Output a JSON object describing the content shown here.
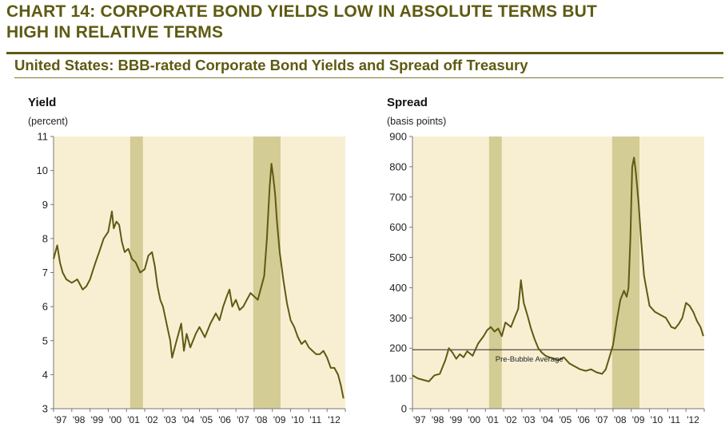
{
  "header": {
    "title_line1": "CHART 14: CORPORATE BOND YIELDS LOW IN ABSOLUTE TERMS BUT",
    "title_line2": "HIGH IN RELATIVE TERMS",
    "subtitle": "United States: BBB-rated Corporate Bond Yields and Spread off Treasury"
  },
  "colors": {
    "title": "#5e5a12",
    "line": "#5e5a12",
    "plot_bg": "#f8efd3",
    "recession_band": "#d4cc95"
  },
  "chart_data": [
    {
      "type": "line",
      "title": "Yield",
      "ylabel": "(percent)",
      "x_ticks": [
        "'97",
        "'98",
        "'99",
        "'00",
        "'01",
        "'02",
        "'03",
        "'04",
        "'05",
        "'06",
        "'07",
        "'08",
        "'09",
        "'10",
        "'11",
        "'12"
      ],
      "xlim": [
        1997.0,
        2013.0
      ],
      "ylim": [
        3,
        11
      ],
      "y_ticks": [
        3,
        4,
        5,
        6,
        7,
        8,
        9,
        10,
        11
      ],
      "shaded_periods": [
        [
          2001.2,
          2001.9
        ],
        [
          2007.95,
          2009.45
        ]
      ],
      "series": [
        {
          "x": [
            1997.0,
            1997.2,
            1997.35,
            1997.5,
            1997.7,
            1998.0,
            1998.3,
            1998.6,
            1998.8,
            1999.0,
            1999.3,
            1999.5,
            1999.75,
            2000.0,
            2000.2,
            2000.3,
            2000.45,
            2000.6,
            2000.75,
            2000.9,
            2001.1,
            2001.3,
            2001.5,
            2001.75,
            2002.0,
            2002.2,
            2002.4,
            2002.55,
            2002.7,
            2002.85,
            2003.0,
            2003.2,
            2003.4,
            2003.5,
            2003.7,
            2004.0,
            2004.15,
            2004.3,
            2004.5,
            2004.8,
            2005.0,
            2005.3,
            2005.6,
            2005.9,
            2006.1,
            2006.3,
            2006.5,
            2006.65,
            2006.8,
            2007.0,
            2007.2,
            2007.4,
            2007.6,
            2007.8,
            2008.0,
            2008.2,
            2008.4,
            2008.55,
            2008.7,
            2008.78,
            2008.85,
            2008.95,
            2009.05,
            2009.15,
            2009.25,
            2009.4,
            2009.6,
            2009.8,
            2010.0,
            2010.2,
            2010.4,
            2010.6,
            2010.8,
            2011.0,
            2011.2,
            2011.4,
            2011.6,
            2011.8,
            2012.0,
            2012.2,
            2012.4,
            2012.6,
            2012.75,
            2012.9
          ],
          "y": [
            7.4,
            7.8,
            7.3,
            7.0,
            6.8,
            6.7,
            6.8,
            6.5,
            6.6,
            6.8,
            7.3,
            7.6,
            8.0,
            8.2,
            8.8,
            8.3,
            8.5,
            8.4,
            7.9,
            7.6,
            7.7,
            7.4,
            7.3,
            7.0,
            7.1,
            7.5,
            7.6,
            7.2,
            6.6,
            6.2,
            6.0,
            5.5,
            5.0,
            4.5,
            4.9,
            5.5,
            4.7,
            5.2,
            4.8,
            5.2,
            5.4,
            5.1,
            5.5,
            5.8,
            5.6,
            6.0,
            6.3,
            6.5,
            6.0,
            6.2,
            5.9,
            6.0,
            6.2,
            6.4,
            6.3,
            6.2,
            6.6,
            6.9,
            8.0,
            8.8,
            9.5,
            10.2,
            9.8,
            9.3,
            8.5,
            7.6,
            6.8,
            6.1,
            5.6,
            5.4,
            5.1,
            4.9,
            5.0,
            4.8,
            4.7,
            4.6,
            4.6,
            4.7,
            4.5,
            4.2,
            4.2,
            4.0,
            3.7,
            3.3
          ]
        }
      ]
    },
    {
      "type": "line",
      "title": "Spread",
      "ylabel": "(basis points)",
      "x_ticks": [
        "'97",
        "'98",
        "'99",
        "'00",
        "'01",
        "'02",
        "'03",
        "'04",
        "'05",
        "'06",
        "'07",
        "'08",
        "'09",
        "'10",
        "'11",
        "'12"
      ],
      "xlim": [
        1997.0,
        2013.0
      ],
      "ylim": [
        0,
        900
      ],
      "y_ticks": [
        0,
        100,
        200,
        300,
        400,
        500,
        600,
        700,
        800,
        900
      ],
      "shaded_periods": [
        [
          2001.2,
          2001.9
        ],
        [
          2007.95,
          2009.45
        ]
      ],
      "reference_line": {
        "value": 195,
        "label": "Pre-Bubble Average"
      },
      "series": [
        {
          "x": [
            1997.0,
            1997.3,
            1997.6,
            1997.9,
            1998.2,
            1998.5,
            1998.8,
            1999.0,
            1999.2,
            1999.4,
            1999.6,
            1999.8,
            2000.0,
            2000.3,
            2000.6,
            2000.9,
            2001.1,
            2001.3,
            2001.5,
            2001.7,
            2001.9,
            2002.1,
            2002.4,
            2002.6,
            2002.8,
            2002.95,
            2003.1,
            2003.3,
            2003.5,
            2003.7,
            2003.9,
            2004.1,
            2004.3,
            2004.5,
            2004.8,
            2005.0,
            2005.3,
            2005.6,
            2005.9,
            2006.2,
            2006.5,
            2006.8,
            2007.1,
            2007.4,
            2007.6,
            2007.8,
            2008.0,
            2008.2,
            2008.4,
            2008.6,
            2008.75,
            2008.85,
            2008.95,
            2009.05,
            2009.15,
            2009.25,
            2009.4,
            2009.55,
            2009.7,
            2009.85,
            2010.0,
            2010.3,
            2010.6,
            2010.9,
            2011.2,
            2011.4,
            2011.6,
            2011.8,
            2012.0,
            2012.2,
            2012.4,
            2012.6,
            2012.8,
            2012.95
          ],
          "y": [
            110,
            100,
            95,
            90,
            110,
            115,
            160,
            200,
            185,
            165,
            180,
            170,
            190,
            175,
            215,
            240,
            260,
            270,
            255,
            265,
            240,
            285,
            270,
            300,
            330,
            425,
            350,
            310,
            265,
            230,
            200,
            185,
            175,
            170,
            165,
            160,
            170,
            150,
            140,
            130,
            125,
            130,
            120,
            115,
            130,
            170,
            210,
            290,
            360,
            390,
            370,
            400,
            560,
            800,
            830,
            780,
            680,
            550,
            440,
            390,
            340,
            320,
            310,
            300,
            270,
            265,
            280,
            300,
            350,
            340,
            320,
            290,
            270,
            240
          ]
        }
      ]
    }
  ]
}
